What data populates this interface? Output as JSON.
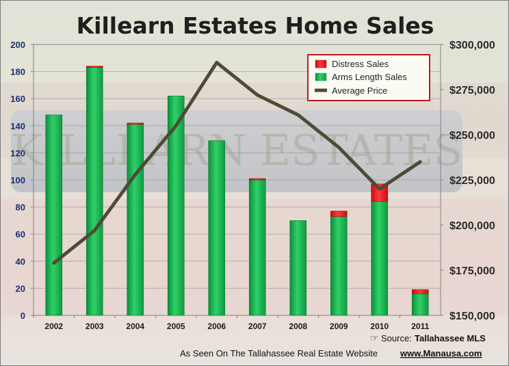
{
  "chart_data": {
    "type": "bar",
    "title": "Killearn Estates Home Sales",
    "categories": [
      "2002",
      "2003",
      "2004",
      "2005",
      "2006",
      "2007",
      "2008",
      "2009",
      "2010",
      "2011"
    ],
    "series": [
      {
        "name": "Arms Length Sales",
        "kind": "bar",
        "axis": "left",
        "stack": "sales",
        "color": "#22c45a",
        "values": [
          148,
          183,
          141,
          162,
          129,
          100,
          70,
          73,
          84,
          16
        ]
      },
      {
        "name": "Distress Sales",
        "kind": "bar",
        "axis": "left",
        "stack": "sales",
        "color": "#ee1c1c",
        "values": [
          0,
          1,
          1,
          0,
          0,
          1,
          0,
          4,
          13,
          3
        ]
      },
      {
        "name": "Average Price",
        "kind": "line",
        "axis": "right",
        "color": "#4f4a36",
        "values": [
          179000,
          197000,
          228000,
          255000,
          290000,
          272000,
          261000,
          243000,
          220000,
          235000
        ]
      }
    ],
    "legend": [
      "Distress Sales",
      "Arms Length Sales",
      "Average Price"
    ],
    "legend_position": "top-right",
    "y_left_ticks": [
      "0",
      "20",
      "40",
      "60",
      "80",
      "100",
      "120",
      "140",
      "160",
      "180",
      "200"
    ],
    "y_left_range": [
      0,
      200
    ],
    "y_right_ticks": [
      "$150,000",
      "$175,000",
      "$200,000",
      "$225,000",
      "$250,000",
      "$275,000",
      "$300,000"
    ],
    "y_right_range": [
      150000,
      300000
    ],
    "grid": true,
    "colors": {
      "title": "#1f1f1f",
      "left_axis_text": "#1a2f6e",
      "right_axis_text": "#2a2a2a"
    }
  },
  "footer": {
    "source_label": "Source:",
    "source_value": "Tallahassee MLS",
    "credit": "As Seen On The Tallahassee Real Estate Website",
    "website": "www.Manausa.com"
  },
  "background": {
    "sign_text": "KILLEARN ESTATES"
  }
}
